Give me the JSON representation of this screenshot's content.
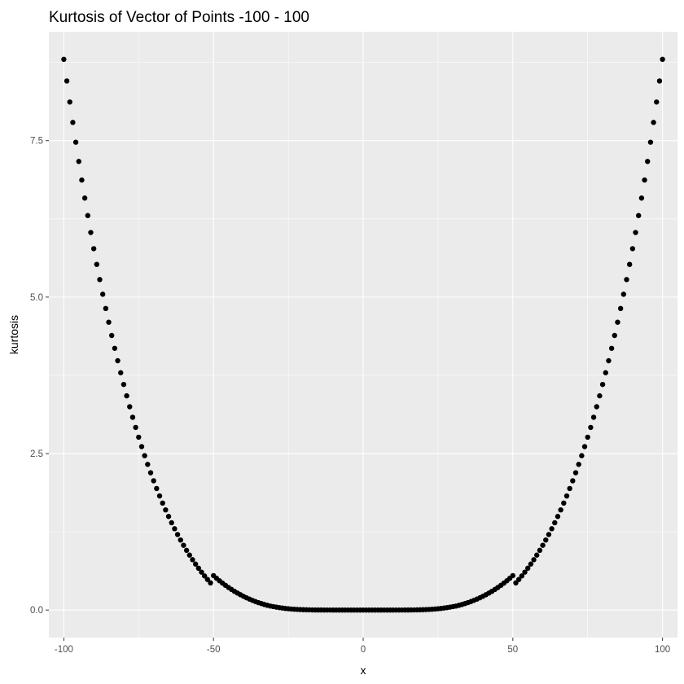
{
  "chart_data": {
    "type": "scatter",
    "title": "Kurtosis of Vector of Points -100 - 100",
    "xlabel": "x",
    "ylabel": "kurtosis",
    "xlim": [
      -105,
      105
    ],
    "ylim": [
      -0.44,
      9.24
    ],
    "x_ticks": [
      -100,
      -50,
      0,
      50,
      100
    ],
    "x_tick_labels": [
      "-100",
      "-50",
      "0",
      "50",
      "100"
    ],
    "y_ticks": [
      0,
      2.5,
      5,
      7.5
    ],
    "y_tick_labels": [
      "0.0",
      "2.5",
      "5.0",
      "7.5"
    ],
    "grid": true,
    "legend": "none",
    "point_color": "#000000",
    "panel_color": "#ebebeb",
    "x": [
      -100,
      -99,
      -98,
      -97,
      -96,
      -95,
      -94,
      -93,
      -92,
      -91,
      -90,
      -89,
      -88,
      -87,
      -86,
      -85,
      -84,
      -83,
      -82,
      -81,
      -80,
      -79,
      -78,
      -77,
      -76,
      -75,
      -74,
      -73,
      -72,
      -71,
      -70,
      -69,
      -68,
      -67,
      -66,
      -65,
      -64,
      -63,
      -62,
      -61,
      -60,
      -59,
      -58,
      -57,
      -56,
      -55,
      -54,
      -53,
      -52,
      -51,
      -50,
      -49,
      -48,
      -47,
      -46,
      -45,
      -44,
      -43,
      -42,
      -41,
      -40,
      -39,
      -38,
      -37,
      -36,
      -35,
      -34,
      -33,
      -32,
      -31,
      -30,
      -29,
      -28,
      -27,
      -26,
      -25,
      -24,
      -23,
      -22,
      -21,
      -20,
      -19,
      -18,
      -17,
      -16,
      -15,
      -14,
      -13,
      -12,
      -11,
      -10,
      -9,
      -8,
      -7,
      -6,
      -5,
      -4,
      -3,
      -2,
      -1,
      0,
      1,
      2,
      3,
      4,
      5,
      6,
      7,
      8,
      9,
      10,
      11,
      12,
      13,
      14,
      15,
      16,
      17,
      18,
      19,
      20,
      21,
      22,
      23,
      24,
      25,
      26,
      27,
      28,
      29,
      30,
      31,
      32,
      33,
      34,
      35,
      36,
      37,
      38,
      39,
      40,
      41,
      42,
      43,
      44,
      45,
      46,
      47,
      48,
      49,
      50,
      51,
      52,
      53,
      54,
      55,
      56,
      57,
      58,
      59,
      60,
      61,
      62,
      63,
      64,
      65,
      66,
      67,
      68,
      69,
      70,
      71,
      72,
      73,
      74,
      75,
      76,
      77,
      78,
      79,
      80,
      81,
      82,
      83,
      84,
      85,
      86,
      87,
      88,
      89,
      90,
      91,
      92,
      93,
      94,
      95,
      96,
      97,
      98,
      99,
      100
    ],
    "y": [
      8.8,
      8.4536,
      8.1174,
      7.7913,
      7.475,
      7.1682,
      6.8708,
      6.5826,
      6.3032,
      6.0325,
      5.7737,
      5.5231,
      5.2805,
      5.0458,
      4.8187,
      4.5991,
      4.3869,
      4.1818,
      3.9836,
      3.7923,
      3.6045,
      3.4232,
      3.2485,
      3.0802,
      2.918,
      2.7619,
      2.6115,
      2.4669,
      2.3277,
      2.1939,
      2.0653,
      1.9418,
      1.8232,
      1.7093,
      1.6001,
      1.4954,
      1.3951,
      1.2989,
      1.2069,
      1.1189,
      1.0347,
      0.9543,
      0.8776,
      0.8044,
      0.7347,
      0.6683,
      0.6051,
      0.5451,
      0.4882,
      0.4342,
      0.55,
      0.508,
      0.4681,
      0.4304,
      0.3947,
      0.361,
      0.3292,
      0.2993,
      0.2711,
      0.2446,
      0.22,
      0.1964,
      0.1747,
      0.1546,
      0.1359,
      0.1188,
      0.1031,
      0.0887,
      0.0757,
      0.0638,
      0.055,
      0.0464,
      0.0388,
      0.032,
      0.0261,
      0.0211,
      0.0168,
      0.0131,
      0.0101,
      0.0076,
      0.0055,
      0.0041,
      0.0029,
      0.0021,
      0.0014,
      0.0009,
      0.0006,
      0.0003,
      0.0002,
      0.0001,
      0.0,
      0.0,
      0.0,
      0.0,
      0.0,
      0.0,
      0.0,
      0.0,
      0.0,
      0.0,
      0.0,
      0.0,
      0.0,
      0.0,
      0.0,
      0.0,
      0.0,
      0.0,
      0.0,
      0.0,
      0.0,
      0.0001,
      0.0002,
      0.0003,
      0.0006,
      0.0009,
      0.0014,
      0.0021,
      0.0029,
      0.0041,
      0.0055,
      0.0076,
      0.0101,
      0.0131,
      0.0168,
      0.0211,
      0.0261,
      0.032,
      0.0388,
      0.0464,
      0.055,
      0.0638,
      0.0757,
      0.0887,
      0.1031,
      0.1188,
      0.1359,
      0.1546,
      0.1747,
      0.1964,
      0.22,
      0.2446,
      0.2711,
      0.2993,
      0.3292,
      0.361,
      0.3947,
      0.4304,
      0.4681,
      0.508,
      0.55,
      0.4342,
      0.4882,
      0.5451,
      0.6051,
      0.6683,
      0.7347,
      0.8044,
      0.8776,
      0.9543,
      1.0347,
      1.1189,
      1.2069,
      1.2989,
      1.3951,
      1.4954,
      1.6001,
      1.7093,
      1.8232,
      1.9418,
      2.0653,
      2.1939,
      2.3277,
      2.4669,
      2.6115,
      2.7619,
      2.918,
      3.0802,
      3.2485,
      3.4232,
      3.6045,
      3.7923,
      3.9836,
      4.1818,
      4.3869,
      4.5991,
      4.8187,
      5.0458,
      5.2805,
      5.5231,
      5.7737,
      6.0325,
      6.3032,
      6.5826,
      6.8708,
      7.1682,
      7.475,
      7.7913,
      8.1174,
      8.4536,
      8.8
    ]
  }
}
